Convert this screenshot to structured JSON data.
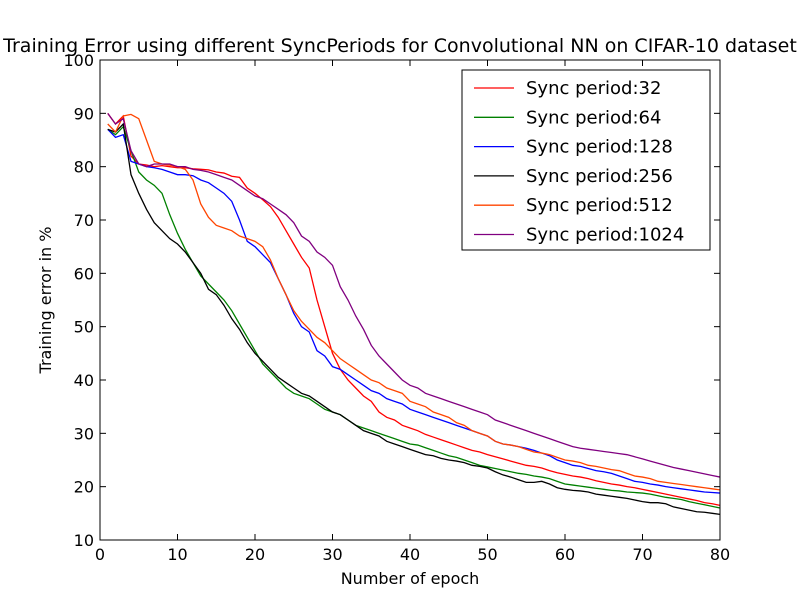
{
  "chart_data": {
    "type": "line",
    "title": "Training Error using different SyncPeriods for Convolutional NN on CIFAR-10 dataset",
    "xlabel": "Number of epoch",
    "ylabel": "Training error in %",
    "xlim": [
      0,
      80
    ],
    "ylim": [
      10,
      100
    ],
    "xticks": [
      "0",
      "10",
      "20",
      "30",
      "40",
      "50",
      "60",
      "70",
      "80"
    ],
    "yticks": [
      "10",
      "20",
      "30",
      "40",
      "50",
      "60",
      "70",
      "80",
      "90",
      "100"
    ],
    "grid": false,
    "legend_position": "top-right",
    "x": [
      1,
      2,
      3,
      4,
      5,
      6,
      7,
      8,
      9,
      10,
      11,
      12,
      13,
      14,
      15,
      16,
      17,
      18,
      19,
      20,
      21,
      22,
      23,
      24,
      25,
      26,
      27,
      28,
      29,
      30,
      31,
      32,
      33,
      34,
      35,
      36,
      37,
      38,
      39,
      40,
      41,
      42,
      43,
      44,
      45,
      46,
      47,
      48,
      49,
      50,
      51,
      52,
      53,
      54,
      55,
      56,
      57,
      58,
      59,
      60,
      61,
      62,
      63,
      64,
      65,
      66,
      67,
      68,
      69,
      70,
      71,
      72,
      73,
      74,
      75,
      76,
      77,
      78,
      79,
      80
    ],
    "series": [
      {
        "name": "Sync period:32",
        "color": "#ff0000",
        "values": [
          90.0,
          88.0,
          89.5,
          82.0,
          80.5,
          80.3,
          80.0,
          80.2,
          80.0,
          79.8,
          79.8,
          79.6,
          79.5,
          79.4,
          79.0,
          78.8,
          78.2,
          78.0,
          76.0,
          75.0,
          73.8,
          72.5,
          70.5,
          68.0,
          65.5,
          63.0,
          61.0,
          55.0,
          50.0,
          45.0,
          42.0,
          40.0,
          38.5,
          37.0,
          36.0,
          34.0,
          33.0,
          32.5,
          31.5,
          31.0,
          30.5,
          29.8,
          29.3,
          28.8,
          28.3,
          27.8,
          27.3,
          26.8,
          26.5,
          26.0,
          25.6,
          25.2,
          24.8,
          24.4,
          24.0,
          23.8,
          23.5,
          23.0,
          22.6,
          22.3,
          22.0,
          21.8,
          21.5,
          21.1,
          20.8,
          20.5,
          20.3,
          20.0,
          19.8,
          19.5,
          19.2,
          18.9,
          18.6,
          18.3,
          18.0,
          17.7,
          17.4,
          17.0,
          16.8,
          16.5
        ]
      },
      {
        "name": "Sync period:64",
        "color": "#008000",
        "values": [
          87.0,
          86.0,
          87.5,
          83.0,
          79.0,
          77.5,
          76.5,
          75.0,
          71.0,
          67.5,
          64.5,
          62.0,
          59.5,
          58.0,
          56.5,
          55.0,
          53.0,
          50.5,
          48.0,
          45.5,
          43.0,
          41.5,
          40.0,
          38.5,
          37.5,
          37.0,
          36.5,
          35.5,
          34.5,
          34.0,
          33.5,
          32.5,
          31.5,
          31.0,
          30.5,
          30.0,
          29.5,
          29.0,
          28.5,
          28.0,
          27.8,
          27.3,
          26.8,
          26.3,
          25.8,
          25.5,
          25.0,
          24.5,
          24.0,
          23.7,
          23.4,
          23.1,
          22.8,
          22.5,
          22.3,
          22.0,
          21.8,
          21.5,
          21.0,
          20.5,
          20.3,
          20.1,
          19.9,
          19.7,
          19.5,
          19.3,
          19.2,
          19.0,
          18.9,
          18.8,
          18.6,
          18.3,
          18.0,
          17.8,
          17.6,
          17.2,
          16.9,
          16.6,
          16.3,
          16.0
        ]
      },
      {
        "name": "Sync period:128",
        "color": "#0000ff",
        "values": [
          87.0,
          85.5,
          86.0,
          81.0,
          80.5,
          80.0,
          79.8,
          79.5,
          79.0,
          78.5,
          78.5,
          78.3,
          77.5,
          77.0,
          76.0,
          75.0,
          73.5,
          70.0,
          66.0,
          65.0,
          63.5,
          62.0,
          59.0,
          56.0,
          52.5,
          50.0,
          49.0,
          45.5,
          44.5,
          42.5,
          42.0,
          41.0,
          40.0,
          39.0,
          38.0,
          37.5,
          36.5,
          36.0,
          35.5,
          34.5,
          34.0,
          33.5,
          33.0,
          32.5,
          32.0,
          31.5,
          31.0,
          30.5,
          30.0,
          29.5,
          28.5,
          28.0,
          27.8,
          27.5,
          27.2,
          26.8,
          26.3,
          25.8,
          25.0,
          24.5,
          24.0,
          23.8,
          23.4,
          23.0,
          22.8,
          22.5,
          22.0,
          21.5,
          21.0,
          20.8,
          20.5,
          20.3,
          20.0,
          19.8,
          19.6,
          19.4,
          19.2,
          19.0,
          18.9,
          18.8
        ]
      },
      {
        "name": "Sync period:256",
        "color": "#000000",
        "values": [
          87.0,
          86.5,
          88.0,
          78.5,
          75.0,
          72.0,
          69.5,
          68.0,
          66.5,
          65.5,
          64.0,
          62.0,
          60.0,
          57.0,
          56.0,
          54.0,
          51.5,
          49.5,
          47.0,
          45.0,
          43.5,
          42.0,
          40.5,
          39.5,
          38.5,
          37.5,
          37.0,
          36.0,
          35.0,
          34.0,
          33.5,
          32.5,
          31.5,
          30.5,
          30.0,
          29.5,
          28.5,
          28.0,
          27.5,
          27.0,
          26.5,
          26.0,
          25.8,
          25.3,
          25.0,
          24.8,
          24.5,
          24.0,
          23.8,
          23.5,
          22.8,
          22.2,
          21.8,
          21.3,
          20.8,
          20.8,
          21.0,
          20.5,
          19.8,
          19.5,
          19.3,
          19.2,
          19.0,
          18.6,
          18.4,
          18.2,
          18.0,
          17.8,
          17.5,
          17.2,
          17.0,
          17.0,
          16.8,
          16.2,
          15.9,
          15.6,
          15.3,
          15.2,
          15.0,
          14.8
        ]
      },
      {
        "name": "Sync period:512",
        "color": "#ff4500",
        "values": [
          88.0,
          86.5,
          89.5,
          89.8,
          89.0,
          85.0,
          81.0,
          80.5,
          80.3,
          80.0,
          79.5,
          77.5,
          73.0,
          70.5,
          69.0,
          68.5,
          68.0,
          67.0,
          66.5,
          66.0,
          65.0,
          62.5,
          59.0,
          56.0,
          53.0,
          51.0,
          49.5,
          48.0,
          47.0,
          45.5,
          44.0,
          43.0,
          42.0,
          41.0,
          40.0,
          39.5,
          38.5,
          38.0,
          37.5,
          36.0,
          35.5,
          35.0,
          34.0,
          33.5,
          33.0,
          32.0,
          31.5,
          30.5,
          30.0,
          29.5,
          28.5,
          28.0,
          27.8,
          27.5,
          27.0,
          26.5,
          26.3,
          26.0,
          25.5,
          25.0,
          24.8,
          24.5,
          24.0,
          23.8,
          23.5,
          23.2,
          23.0,
          22.5,
          22.0,
          21.8,
          21.5,
          21.0,
          20.8,
          20.6,
          20.4,
          20.2,
          20.0,
          19.8,
          19.6,
          19.4
        ]
      },
      {
        "name": "Sync period:1024",
        "color": "#800080",
        "values": [
          90.0,
          88.0,
          89.0,
          83.0,
          80.5,
          80.0,
          80.5,
          80.5,
          80.5,
          80.0,
          80.0,
          79.5,
          79.3,
          79.0,
          78.5,
          78.0,
          77.5,
          76.5,
          75.5,
          74.5,
          74.0,
          73.0,
          72.0,
          71.0,
          69.5,
          67.0,
          66.0,
          64.0,
          63.0,
          61.5,
          57.5,
          55.0,
          52.0,
          49.5,
          46.5,
          44.5,
          43.0,
          41.5,
          40.0,
          39.0,
          38.5,
          37.5,
          37.0,
          36.5,
          36.0,
          35.5,
          35.0,
          34.5,
          34.0,
          33.5,
          32.5,
          32.0,
          31.5,
          31.0,
          30.5,
          30.0,
          29.5,
          29.0,
          28.5,
          28.0,
          27.5,
          27.2,
          27.0,
          26.8,
          26.6,
          26.4,
          26.2,
          26.0,
          25.6,
          25.2,
          24.8,
          24.4,
          24.0,
          23.6,
          23.3,
          23.0,
          22.7,
          22.4,
          22.1,
          21.8
        ]
      }
    ]
  }
}
